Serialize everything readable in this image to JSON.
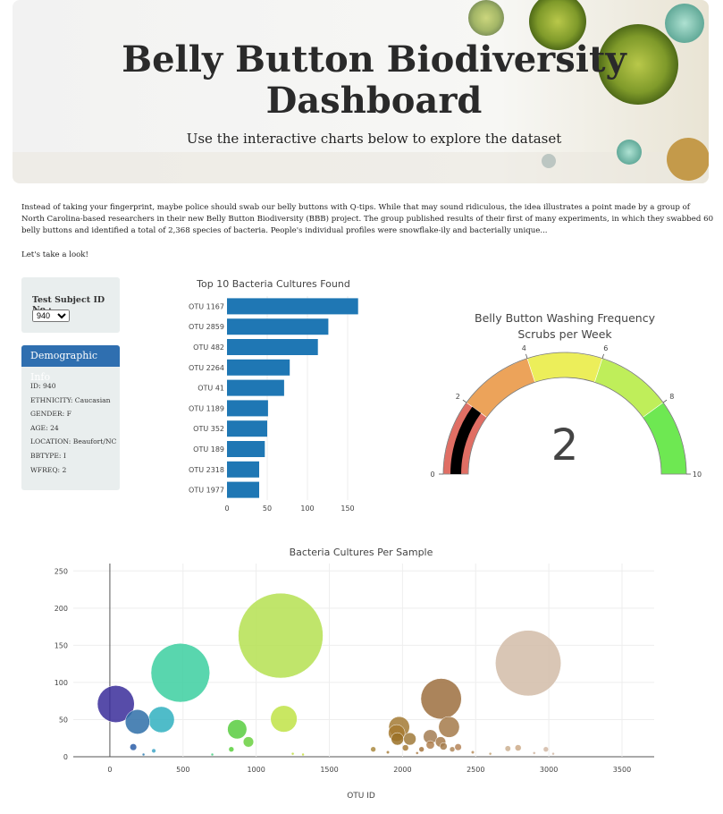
{
  "header": {
    "title": "Belly Button Biodiversity Dashboard",
    "title_line1": "Belly Button Biodiversity",
    "title_line2": "Dashboard",
    "subtitle": "Use the interactive charts below to explore the dataset"
  },
  "intro": "Instead of taking your fingerprint, maybe police should swab our belly buttons with Q-tips. While that may sound ridiculous, the idea illustrates a point made by a group of North Carolina-based researchers in their new Belly Button Biodiversity (BBB) project. The group published results of their first of many experiments, in which they swabbed 60 belly buttons and identified a total of 2,368 species of bacteria. People's individual profiles were snowflake-ily and bacterially unique...",
  "cta": "Let's take a look!",
  "selector": {
    "label": "Test Subject ID No.:",
    "selected": "940"
  },
  "demographics": {
    "title": "Demographic Info",
    "rows": [
      "ID: 940",
      "ETHNICITY: Caucasian",
      "GENDER: F",
      "AGE: 24",
      "LOCATION: Beaufort/NC",
      "BBTYPE: I",
      "WFREQ: 2"
    ]
  },
  "chart_data": [
    {
      "type": "bar",
      "orientation": "horizontal",
      "title": "Top 10 Bacteria Cultures Found",
      "categories": [
        "OTU 1167",
        "OTU 2859",
        "OTU 482",
        "OTU 2264",
        "OTU 41",
        "OTU 1189",
        "OTU 352",
        "OTU 189",
        "OTU 2318",
        "OTU 1977"
      ],
      "values": [
        163,
        126,
        113,
        78,
        71,
        51,
        50,
        47,
        40,
        40
      ],
      "xticks": [
        0,
        50,
        100,
        150
      ],
      "xlim": [
        0,
        170
      ],
      "color": "#1f77b4"
    },
    {
      "type": "gauge",
      "title": "Belly Button Washing Frequency",
      "subtitle": "Scrubs per Week",
      "value": 2,
      "value_label": "2",
      "range": [
        0,
        10
      ],
      "ticks": [
        0,
        2,
        4,
        6,
        8,
        10
      ],
      "steps": [
        {
          "range": [
            0,
            2
          ],
          "color": "#e06e64"
        },
        {
          "range": [
            2,
            4
          ],
          "color": "#eca35a"
        },
        {
          "range": [
            4,
            6
          ],
          "color": "#ecee5a"
        },
        {
          "range": [
            6,
            8
          ],
          "color": "#bfee5a"
        },
        {
          "range": [
            8,
            10
          ],
          "color": "#6ee852"
        }
      ],
      "bar_color": "#000000"
    },
    {
      "type": "scatter",
      "title": "Bacteria Cultures Per Sample",
      "xlabel": "OTU ID",
      "ylabel": "",
      "xlim": [
        -250,
        3720
      ],
      "ylim": [
        0,
        260
      ],
      "xticks": [
        0,
        500,
        1000,
        1500,
        2000,
        2500,
        3000,
        3500
      ],
      "yticks": [
        0,
        50,
        100,
        150,
        200,
        250
      ],
      "grid": true,
      "points": [
        {
          "x": 41,
          "y": 71,
          "color": "#3a2d9a"
        },
        {
          "x": 482,
          "y": 113,
          "color": "#3ccfa0"
        },
        {
          "x": 1167,
          "y": 163,
          "color": "#b5e051"
        },
        {
          "x": 2859,
          "y": 126,
          "color": "#d2bca8"
        },
        {
          "x": 2264,
          "y": 78,
          "color": "#9c6e3e"
        },
        {
          "x": 1189,
          "y": 51,
          "color": "#bfe346"
        },
        {
          "x": 352,
          "y": 50,
          "color": "#30b0c0"
        },
        {
          "x": 189,
          "y": 47,
          "color": "#2e6fa8"
        },
        {
          "x": 2318,
          "y": 40,
          "color": "#a57a4a"
        },
        {
          "x": 1977,
          "y": 40,
          "color": "#a37a34"
        },
        {
          "x": 870,
          "y": 37,
          "color": "#58cc40"
        },
        {
          "x": 1960,
          "y": 32,
          "color": "#a77a30"
        },
        {
          "x": 2190,
          "y": 27,
          "color": "#a37c52"
        },
        {
          "x": 947,
          "y": 20,
          "color": "#6ad040"
        },
        {
          "x": 2050,
          "y": 24,
          "color": "#a07a3a"
        },
        {
          "x": 1965,
          "y": 24,
          "color": "#9a7026"
        },
        {
          "x": 2260,
          "y": 20,
          "color": "#a77a4a"
        },
        {
          "x": 2280,
          "y": 14,
          "color": "#a47c4e"
        },
        {
          "x": 2190,
          "y": 16,
          "color": "#b08050"
        },
        {
          "x": 160,
          "y": 13,
          "color": "#2c5ea8"
        },
        {
          "x": 2380,
          "y": 13,
          "color": "#b58458"
        },
        {
          "x": 2720,
          "y": 11,
          "color": "#cbb092"
        },
        {
          "x": 2790,
          "y": 12,
          "color": "#ccaa88"
        },
        {
          "x": 2980,
          "y": 10,
          "color": "#d2b9a4"
        },
        {
          "x": 2020,
          "y": 12,
          "color": "#a47a36"
        },
        {
          "x": 1800,
          "y": 10,
          "color": "#aa8a40"
        },
        {
          "x": 2130,
          "y": 10,
          "color": "#a67640"
        },
        {
          "x": 2340,
          "y": 10,
          "color": "#b0885a"
        },
        {
          "x": 830,
          "y": 10,
          "color": "#58d03c"
        },
        {
          "x": 300,
          "y": 8,
          "color": "#40a6c8"
        },
        {
          "x": 2480,
          "y": 6,
          "color": "#b98e5e"
        },
        {
          "x": 2600,
          "y": 4,
          "color": "#c2a070"
        },
        {
          "x": 1900,
          "y": 6,
          "color": "#a98040"
        },
        {
          "x": 2100,
          "y": 5,
          "color": "#aa7a44"
        },
        {
          "x": 1250,
          "y": 4,
          "color": "#c0de40"
        },
        {
          "x": 1320,
          "y": 3,
          "color": "#c8e040"
        },
        {
          "x": 700,
          "y": 3,
          "color": "#44d080"
        },
        {
          "x": 230,
          "y": 3,
          "color": "#2a7ab0"
        },
        {
          "x": 2900,
          "y": 5,
          "color": "#cfb49e"
        },
        {
          "x": 3030,
          "y": 4,
          "color": "#d3bba8"
        }
      ]
    }
  ]
}
